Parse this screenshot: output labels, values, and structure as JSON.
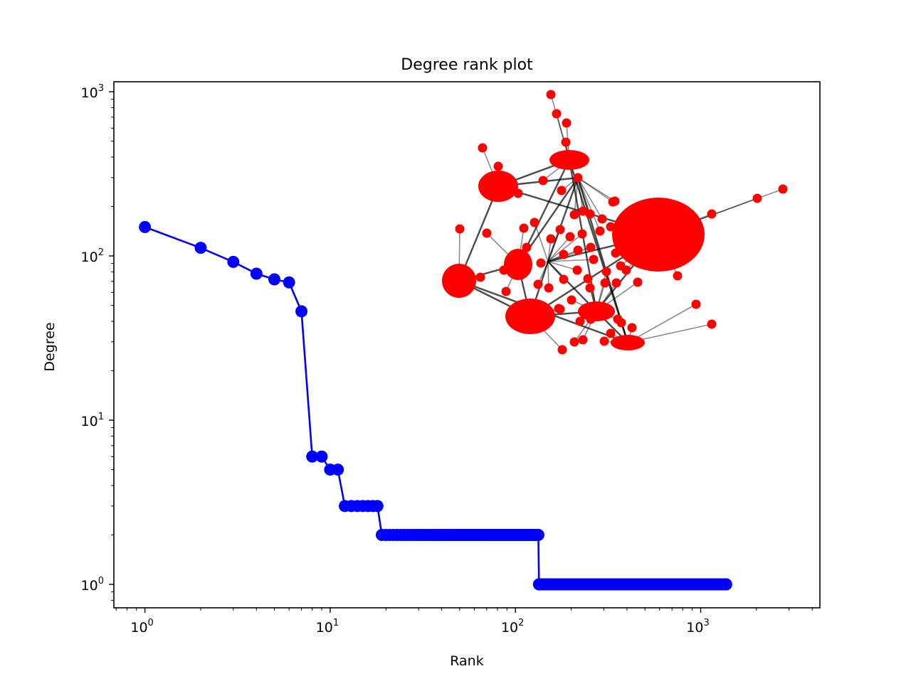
{
  "chart_data": {
    "type": "line",
    "title": "Degree rank plot",
    "xlabel": "Rank",
    "ylabel": "Degree",
    "xscale": "log",
    "yscale": "log",
    "xlim": [
      0.68,
      4400
    ],
    "ylim": [
      0.72,
      1150
    ],
    "grid": false,
    "xticks": [
      {
        "value": 1,
        "base": "10",
        "exp": "0"
      },
      {
        "value": 10,
        "base": "10",
        "exp": "1"
      },
      {
        "value": 100,
        "base": "10",
        "exp": "2"
      },
      {
        "value": 1000,
        "base": "10",
        "exp": "3"
      }
    ],
    "yticks": [
      {
        "value": 1,
        "base": "10",
        "exp": "0"
      },
      {
        "value": 10,
        "base": "10",
        "exp": "1"
      },
      {
        "value": 100,
        "base": "10",
        "exp": "2"
      },
      {
        "value": 1000,
        "base": "10",
        "exp": "3"
      }
    ],
    "series": [
      {
        "color": "#0000ff",
        "marker": "circle",
        "points": [
          [
            1,
            150
          ],
          [
            2,
            112
          ],
          [
            3,
            92
          ],
          [
            4,
            78
          ],
          [
            5,
            72
          ],
          [
            6,
            69
          ],
          [
            7,
            46
          ],
          [
            8,
            6
          ],
          [
            9,
            6
          ],
          [
            10,
            5
          ],
          [
            11,
            5
          ]
        ],
        "runs": [
          {
            "value": 3,
            "from": 12,
            "to": 18
          },
          {
            "value": 2,
            "from": 19,
            "to": 133
          },
          {
            "value": 1,
            "from": 134,
            "to": 1372
          }
        ]
      }
    ],
    "inset": {
      "description": "network graph",
      "node_color": "#ff0000",
      "edge_color": "#000000"
    }
  }
}
